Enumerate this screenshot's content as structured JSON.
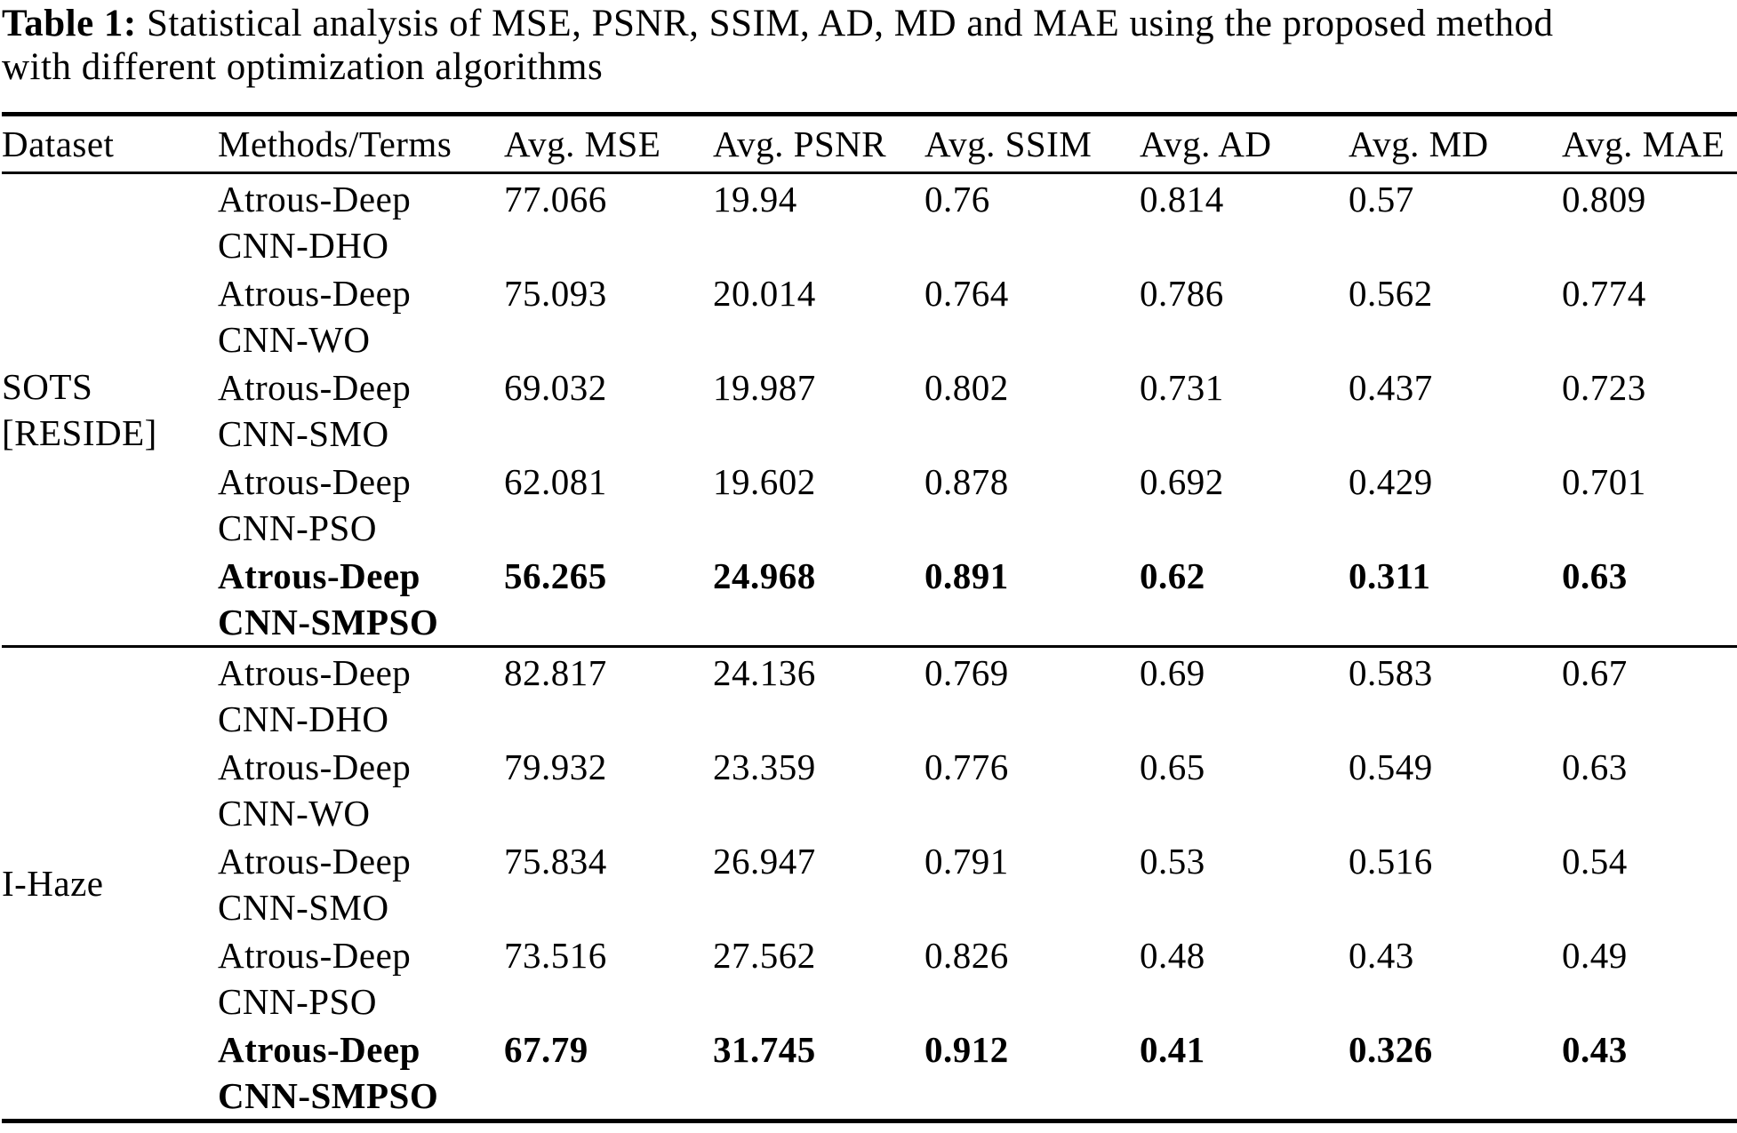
{
  "title": {
    "label": "Table 1:",
    "line1_rest": "Statistical analysis of MSE, PSNR, SSIM, AD, MD and MAE using the proposed method",
    "line2": "with different optimization algorithms"
  },
  "headers": {
    "dataset": "Dataset",
    "method": "Methods/Terms",
    "mse": "Avg. MSE",
    "psnr": "Avg. PSNR",
    "ssim": "Avg. SSIM",
    "ad": "Avg. AD",
    "md": "Avg. MD",
    "mae": "Avg. MAE"
  },
  "datasets": [
    {
      "line1": "SOTS",
      "line2": "[RESIDE]"
    },
    {
      "line1": "I-Haze"
    }
  ],
  "rows": [
    {
      "method1": "Atrous-Deep",
      "method2": "CNN-DHO",
      "mse": "77.066",
      "psnr": "19.94",
      "ssim": "0.76",
      "ad": "0.814",
      "md": "0.57",
      "mae": "0.809"
    },
    {
      "method1": "Atrous-Deep",
      "method2": "CNN-WO",
      "mse": "75.093",
      "psnr": "20.014",
      "ssim": "0.764",
      "ad": "0.786",
      "md": "0.562",
      "mae": "0.774"
    },
    {
      "method1": "Atrous-Deep",
      "method2": "CNN-SMO",
      "mse": "69.032",
      "psnr": "19.987",
      "ssim": "0.802",
      "ad": "0.731",
      "md": "0.437",
      "mae": "0.723"
    },
    {
      "method1": "Atrous-Deep",
      "method2": "CNN-PSO",
      "mse": "62.081",
      "psnr": "19.602",
      "ssim": "0.878",
      "ad": "0.692",
      "md": "0.429",
      "mae": "0.701"
    },
    {
      "method1": "Atrous-Deep",
      "method2": "CNN-SMPSO",
      "mse": "56.265",
      "psnr": "24.968",
      "ssim": "0.891",
      "ad": "0.62",
      "md": "0.311",
      "mae": "0.63"
    },
    {
      "method1": "Atrous-Deep",
      "method2": "CNN-DHO",
      "mse": "82.817",
      "psnr": "24.136",
      "ssim": "0.769",
      "ad": "0.69",
      "md": "0.583",
      "mae": "0.67"
    },
    {
      "method1": "Atrous-Deep",
      "method2": "CNN-WO",
      "mse": "79.932",
      "psnr": "23.359",
      "ssim": "0.776",
      "ad": "0.65",
      "md": "0.549",
      "mae": "0.63"
    },
    {
      "method1": "Atrous-Deep",
      "method2": "CNN-SMO",
      "mse": "75.834",
      "psnr": "26.947",
      "ssim": "0.791",
      "ad": "0.53",
      "md": "0.516",
      "mae": "0.54"
    },
    {
      "method1": "Atrous-Deep",
      "method2": "CNN-PSO",
      "mse": "73.516",
      "psnr": "27.562",
      "ssim": "0.826",
      "ad": "0.48",
      "md": "0.43",
      "mae": "0.49"
    },
    {
      "method1": "Atrous-Deep",
      "method2": "CNN-SMPSO",
      "mse": "67.79",
      "psnr": "31.745",
      "ssim": "0.912",
      "ad": "0.41",
      "md": "0.326",
      "mae": "0.43"
    }
  ]
}
